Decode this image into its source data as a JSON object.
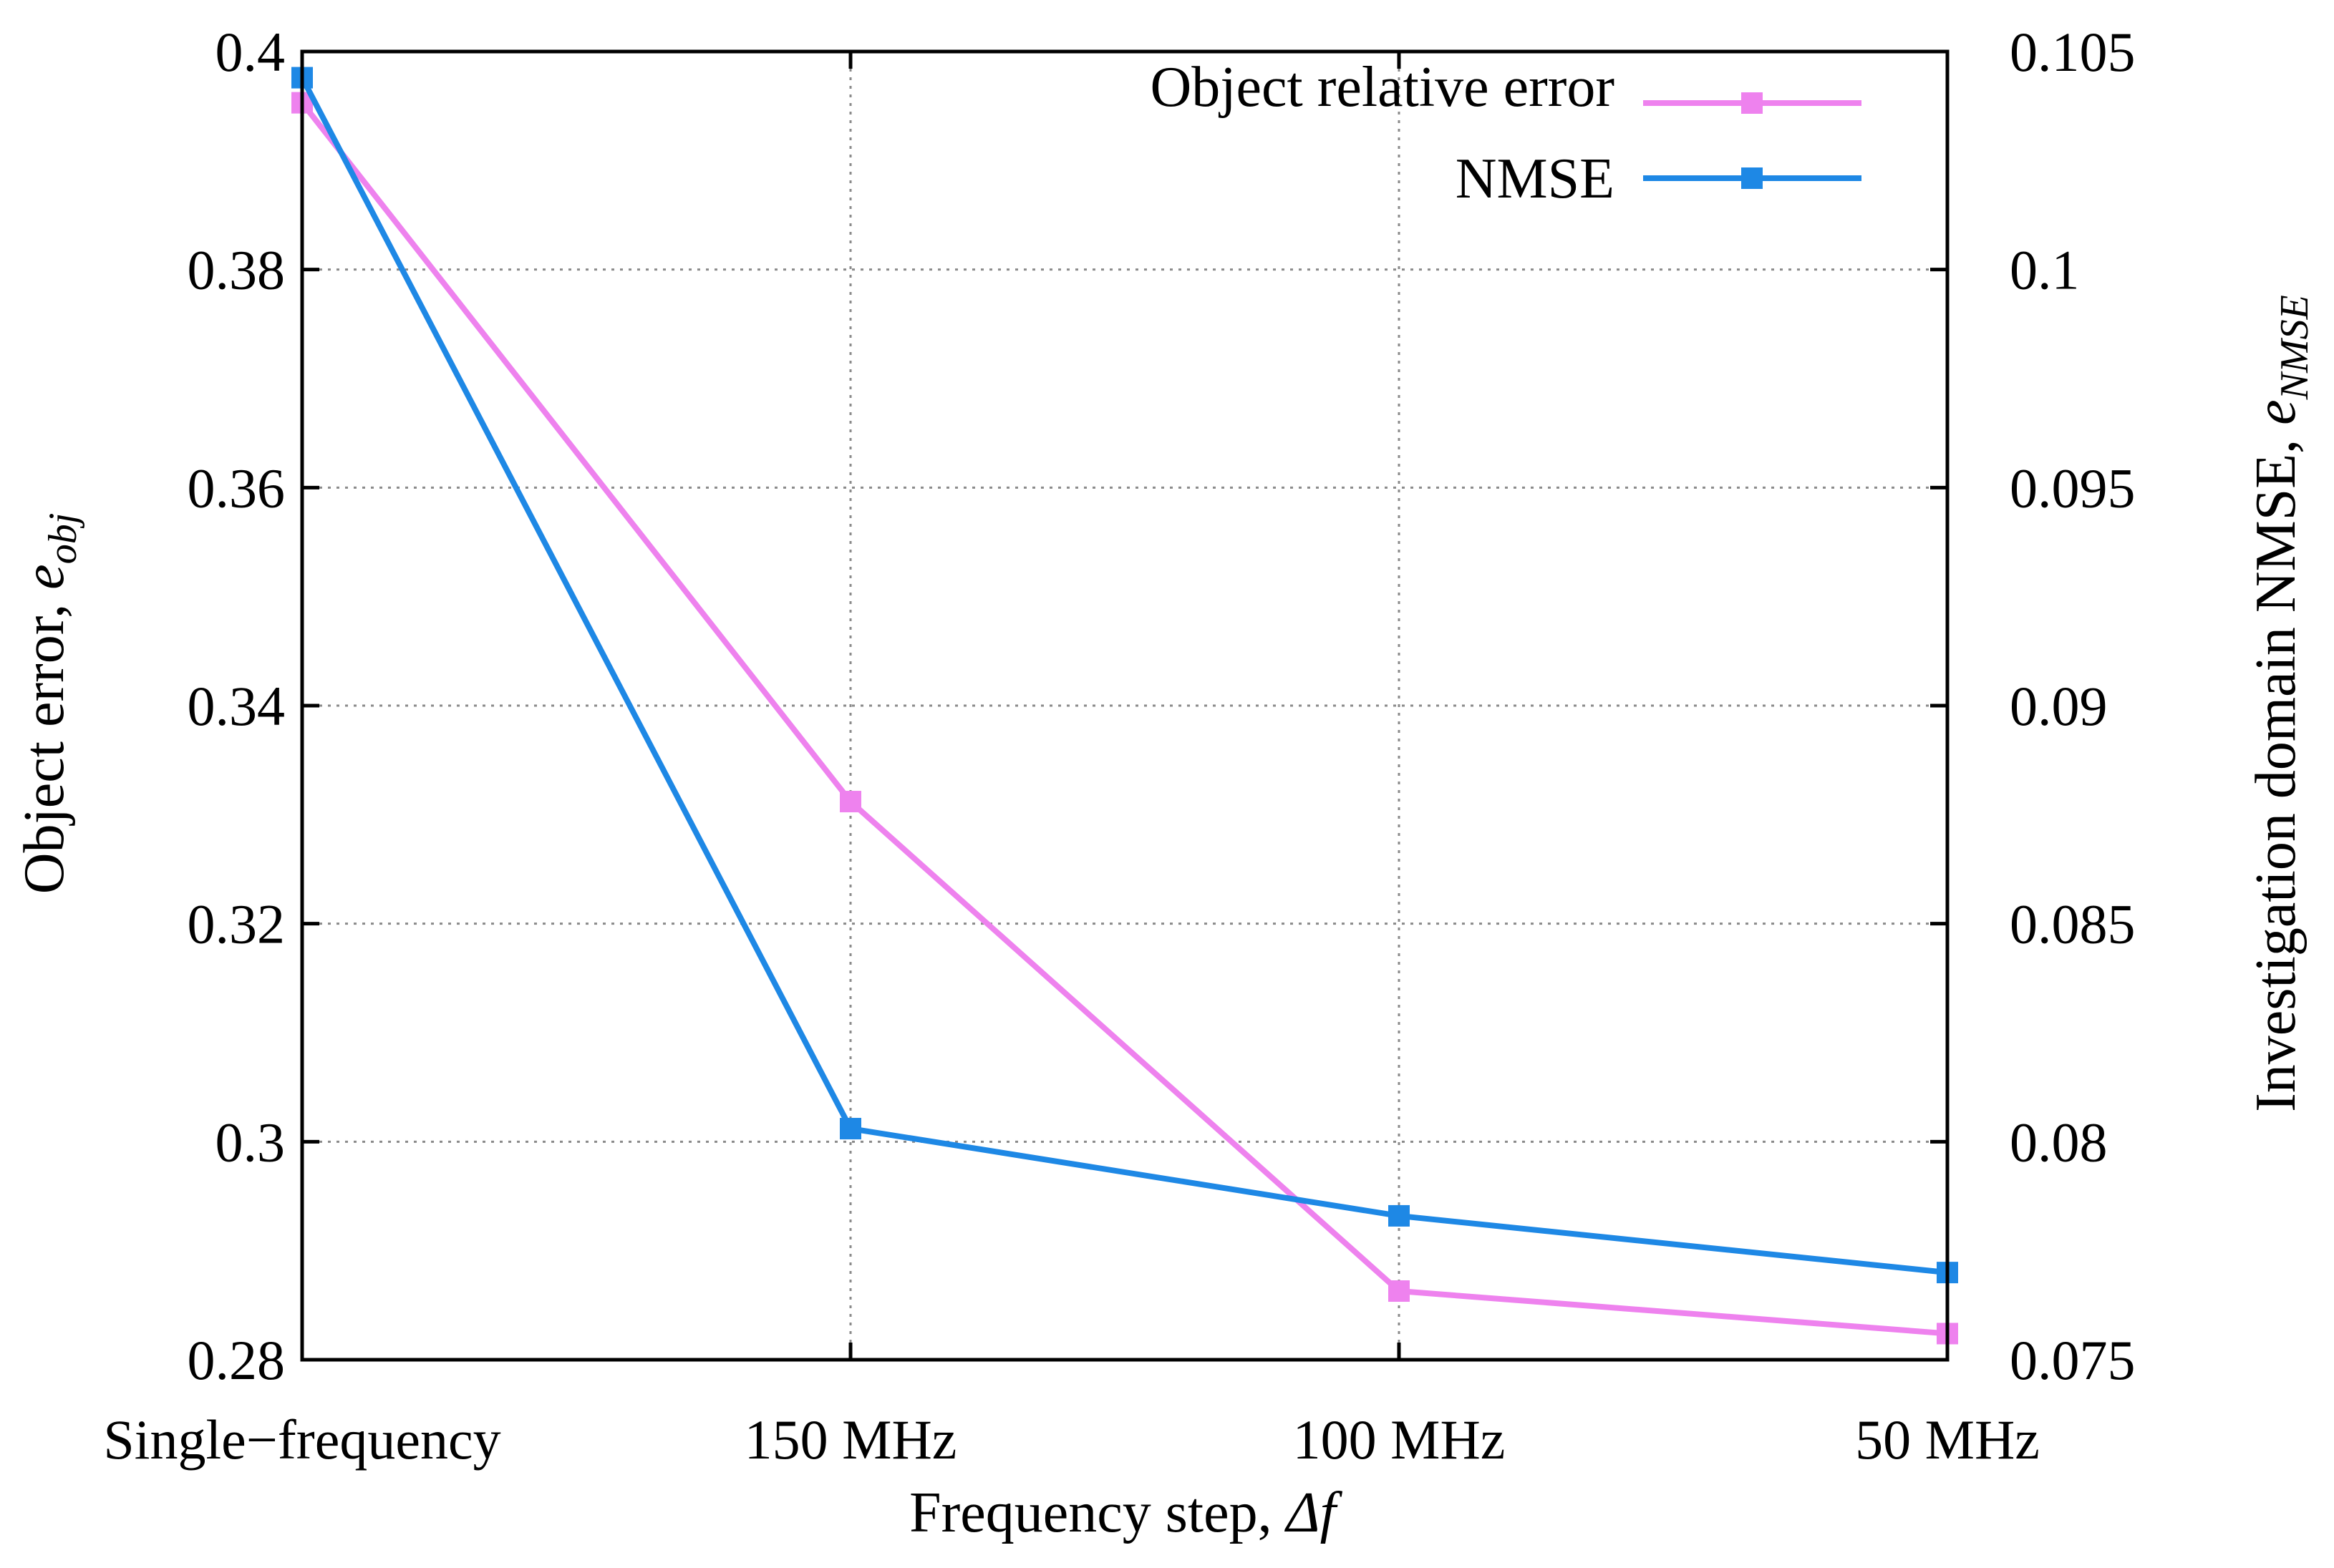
{
  "chart_data": {
    "type": "line",
    "xlabel_main": "Frequency step, ",
    "xlabel_sym": "Δf",
    "ylabel_left_main": "Object error, ",
    "ylabel_left_sym": "e",
    "ylabel_left_sub": "obj",
    "ylabel_right_main": "Investigation domain NMSE, ",
    "ylabel_right_sym": "e",
    "ylabel_right_sub": "NMSE",
    "categories": [
      "Single−frequency",
      "150 MHz",
      "100 MHz",
      "50 MHz"
    ],
    "y_left": {
      "lim": [
        0.28,
        0.4
      ],
      "ticks": [
        0.28,
        0.3,
        0.32,
        0.34,
        0.36,
        0.38,
        0.4
      ],
      "tick_labels": [
        "0.28",
        "0.3",
        "0.32",
        "0.34",
        "0.36",
        "0.38",
        "0.4"
      ]
    },
    "y_right": {
      "lim": [
        0.075,
        0.105
      ],
      "ticks": [
        0.075,
        0.08,
        0.085,
        0.09,
        0.095,
        0.1,
        0.105
      ],
      "tick_labels": [
        "0.075",
        "0.08",
        "0.085",
        "0.09",
        "0.095",
        "0.1",
        "0.105"
      ]
    },
    "grid": true,
    "legend_position": "top-right",
    "series": [
      {
        "name": "Object relative error",
        "axis": "left",
        "color": "#ee82ee",
        "values": [
          0.3953,
          0.3312,
          0.2863,
          0.2824
        ]
      },
      {
        "name": "NMSE",
        "axis": "right",
        "color": "#1e88e5",
        "values": [
          0.1044,
          0.0803,
          0.0783,
          0.077
        ]
      }
    ]
  }
}
